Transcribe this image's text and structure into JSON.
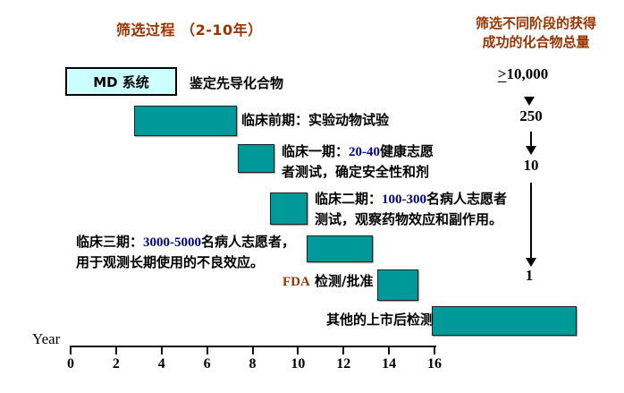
{
  "titles": {
    "left": "筛选过程 （2-10年）",
    "right_line1": "筛选不同阶段的获得",
    "right_line2": "成功的化合物总量"
  },
  "lead": {
    "box_label": "MD 系统",
    "caption": "鉴定先导化合物"
  },
  "stages": [
    {
      "label": "临床前期：实验动物试验",
      "year_start": 2.8,
      "year_end": 7.3
    },
    {
      "prefix": "临床一期：",
      "number": "20-40",
      "suffix": "健康志愿",
      "line2": "者测试，确定安全性和剂",
      "year_start": 7.4,
      "year_end": 9.0
    },
    {
      "prefix": "临床二期：",
      "number": "100-300",
      "suffix": "名病人志愿者",
      "line2": "测试，观察药物效应和副作用。",
      "year_start": 8.8,
      "year_end": 10.4
    },
    {
      "prefix": "临床三期：",
      "number": "3000-5000",
      "suffix": "名病人志愿者，",
      "line2": "用于观测长期使用的不良效应。",
      "year_start": 10.4,
      "year_end": 13.3
    },
    {
      "prefix": "FDA",
      "suffix": " 检测/批准",
      "year_start": 13.5,
      "year_end": 15.3
    },
    {
      "label": "其他的上市后检测",
      "year_start": 16.0,
      "year_end": 22.3
    }
  ],
  "funnel": {
    "gt": ">",
    "initial": "10,000",
    "counts": [
      "250",
      "10",
      "1"
    ]
  },
  "axis": {
    "label": "Year",
    "ticks": [
      "0",
      "2",
      "4",
      "6",
      "8",
      "10",
      "12",
      "14",
      "16"
    ]
  },
  "colors": {
    "bar_fill": "#009999",
    "title_red": "#993300",
    "number_navy": "#000080",
    "lead_box_fill": "#ccffff"
  }
}
